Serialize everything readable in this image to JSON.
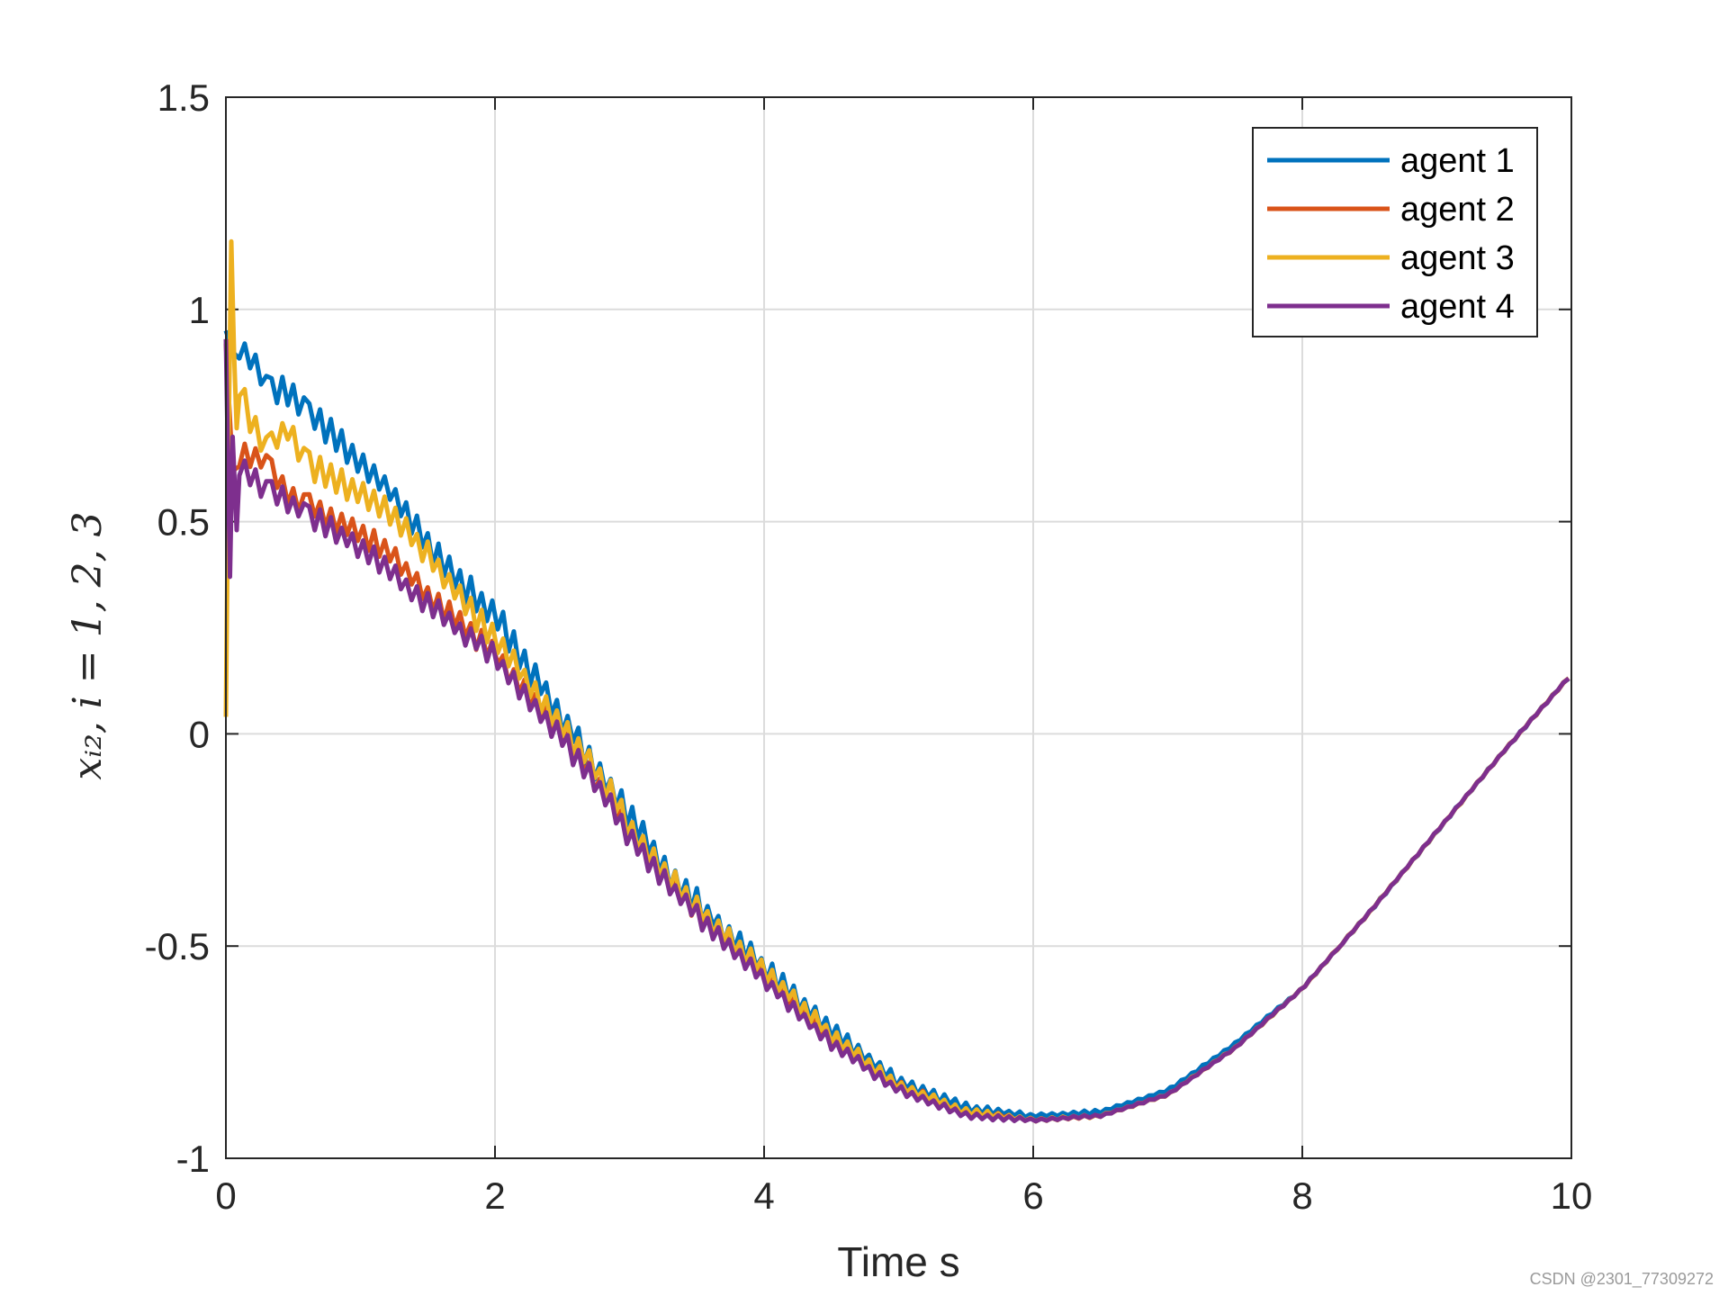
{
  "chart_data": {
    "type": "line",
    "xlabel": "Time s",
    "ylabel": "x_{i2}, i = 1, 2, 3",
    "ylabel_display": "xᵢ₂, i = 1, 2, 3",
    "xlim": [
      0,
      10
    ],
    "ylim": [
      -1,
      1.5
    ],
    "xticks": [
      0,
      2,
      4,
      6,
      8,
      10
    ],
    "xtick_labels": [
      "0",
      "2",
      "4",
      "6",
      "8",
      "10"
    ],
    "yticks": [
      -1,
      -0.5,
      0,
      0.5,
      1,
      1.5
    ],
    "ytick_labels": [
      "-1",
      "-0.5",
      "0",
      "0.5",
      "1",
      "1.5"
    ],
    "grid": true,
    "legend_position": "top-right",
    "series": [
      {
        "name": "agent 1",
        "color": "#0072BD",
        "noise": 0.04,
        "x": [
          0,
          0.05,
          0.1,
          0.2,
          0.3,
          0.45,
          0.6,
          0.8,
          1.0,
          1.2,
          1.4,
          1.6,
          1.8,
          2.0,
          2.2,
          2.5,
          2.8,
          3.0,
          3.3,
          3.6,
          4.0,
          4.5,
          5.0,
          5.5,
          6.0,
          6.5,
          7.0,
          7.5,
          8.0,
          8.5,
          9.0,
          9.5,
          10.0
        ],
        "y": [
          0.95,
          0.9,
          0.91,
          0.88,
          0.82,
          0.8,
          0.76,
          0.7,
          0.64,
          0.58,
          0.5,
          0.4,
          0.34,
          0.28,
          0.18,
          0.04,
          -0.1,
          -0.2,
          -0.33,
          -0.43,
          -0.55,
          -0.7,
          -0.82,
          -0.88,
          -0.9,
          -0.89,
          -0.84,
          -0.73,
          -0.6,
          -0.42,
          -0.23,
          -0.04,
          0.14
        ]
      },
      {
        "name": "agent 2",
        "color": "#D95319",
        "noise": 0.03,
        "x": [
          0,
          0.05,
          0.1,
          0.2,
          0.3,
          0.45,
          0.6,
          0.8,
          1.0,
          1.2,
          1.4,
          1.6,
          1.8,
          2.0,
          2.2,
          2.5,
          2.8,
          3.0,
          3.3,
          3.6,
          4.0,
          4.5,
          5.0,
          5.5,
          6.0,
          6.5,
          7.0,
          7.5,
          8.0,
          8.5,
          9.0,
          9.5,
          10.0
        ],
        "y": [
          0.92,
          0.62,
          0.65,
          0.66,
          0.64,
          0.57,
          0.54,
          0.5,
          0.47,
          0.43,
          0.36,
          0.3,
          0.24,
          0.19,
          0.11,
          0.0,
          -0.13,
          -0.23,
          -0.35,
          -0.45,
          -0.57,
          -0.72,
          -0.83,
          -0.89,
          -0.91,
          -0.9,
          -0.85,
          -0.74,
          -0.6,
          -0.42,
          -0.23,
          -0.04,
          0.14
        ]
      },
      {
        "name": "agent 3",
        "color": "#EDB120",
        "noise": 0.035,
        "x": [
          0,
          0.02,
          0.04,
          0.06,
          0.08,
          0.1,
          0.2,
          0.3,
          0.45,
          0.6,
          0.8,
          1.0,
          1.2,
          1.4,
          1.6,
          1.8,
          2.0,
          2.2,
          2.5,
          2.8,
          3.0,
          3.3,
          3.6,
          4.0,
          4.5,
          5.0,
          5.5,
          6.0,
          6.5,
          7.0,
          7.5,
          8.0,
          8.5,
          9.0,
          9.5,
          10.0
        ],
        "y": [
          0.04,
          0.7,
          1.16,
          0.9,
          0.72,
          0.82,
          0.72,
          0.68,
          0.72,
          0.64,
          0.6,
          0.56,
          0.52,
          0.46,
          0.38,
          0.3,
          0.22,
          0.14,
          0.02,
          -0.11,
          -0.22,
          -0.34,
          -0.44,
          -0.56,
          -0.71,
          -0.83,
          -0.89,
          -0.91,
          -0.9,
          -0.85,
          -0.74,
          -0.6,
          -0.42,
          -0.23,
          -0.04,
          0.14
        ]
      },
      {
        "name": "agent 4",
        "color": "#7E2F8E",
        "noise": 0.03,
        "x": [
          0,
          0.03,
          0.05,
          0.08,
          0.1,
          0.2,
          0.3,
          0.45,
          0.6,
          0.8,
          1.0,
          1.2,
          1.4,
          1.6,
          1.8,
          2.0,
          2.2,
          2.5,
          2.8,
          3.0,
          3.3,
          3.6,
          4.0,
          4.5,
          5.0,
          5.5,
          6.0,
          6.5,
          7.0,
          7.5,
          8.0,
          8.5,
          9.0,
          9.5,
          10.0
        ],
        "y": [
          0.93,
          0.37,
          0.7,
          0.48,
          0.63,
          0.6,
          0.58,
          0.55,
          0.52,
          0.48,
          0.44,
          0.39,
          0.33,
          0.28,
          0.23,
          0.18,
          0.1,
          -0.01,
          -0.14,
          -0.24,
          -0.36,
          -0.46,
          -0.58,
          -0.73,
          -0.84,
          -0.9,
          -0.91,
          -0.9,
          -0.85,
          -0.74,
          -0.6,
          -0.42,
          -0.23,
          -0.04,
          0.14
        ]
      }
    ]
  },
  "watermark": "CSDN @2301_77309272"
}
